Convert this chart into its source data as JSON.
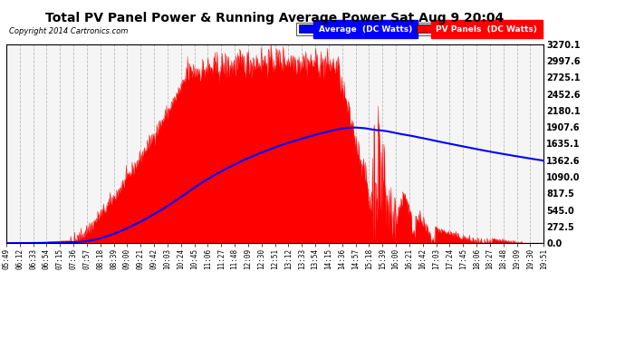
{
  "title": "Total PV Panel Power & Running Average Power Sat Aug 9 20:04",
  "copyright": "Copyright 2014 Cartronics.com",
  "bg_color": "#ffffff",
  "plot_bg_color": "#f5f5f5",
  "grid_color": "#bbbbbb",
  "panel_color": "#ff0000",
  "avg_color": "#0000ff",
  "ylabel_right_values": [
    0.0,
    272.5,
    545.0,
    817.5,
    1090.0,
    1362.6,
    1635.1,
    1907.6,
    2180.1,
    2452.6,
    2725.1,
    2997.6,
    3270.1
  ],
  "ymax": 3270.1,
  "legend_avg_label": "Average  (DC Watts)",
  "legend_pv_label": "PV Panels  (DC Watts)",
  "x_tick_labels": [
    "05:49",
    "06:12",
    "06:33",
    "06:54",
    "07:15",
    "07:36",
    "07:57",
    "08:18",
    "08:39",
    "09:00",
    "09:21",
    "09:42",
    "10:03",
    "10:24",
    "10:45",
    "11:06",
    "11:27",
    "11:48",
    "12:09",
    "12:30",
    "12:51",
    "13:12",
    "13:33",
    "13:54",
    "14:15",
    "14:36",
    "14:57",
    "15:18",
    "15:39",
    "16:00",
    "16:21",
    "16:42",
    "17:03",
    "17:24",
    "17:45",
    "18:06",
    "18:27",
    "18:48",
    "19:09",
    "19:30",
    "19:51"
  ]
}
